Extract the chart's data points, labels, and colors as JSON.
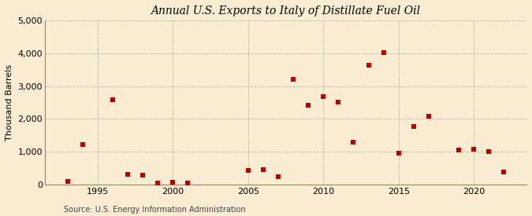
{
  "title": "Annual U.S. Exports to Italy of Distillate Fuel Oil",
  "ylabel": "Thousand Barrels",
  "source": "Source: U.S. Energy Information Administration",
  "background_color": "#faecd2",
  "marker_color": "#bb0000",
  "years": [
    1993,
    1994,
    1996,
    1997,
    1998,
    1999,
    2000,
    2001,
    2005,
    2006,
    2007,
    2008,
    2009,
    2010,
    2011,
    2012,
    2013,
    2014,
    2015,
    2016,
    2017,
    2019,
    2020,
    2021,
    2022
  ],
  "values": [
    80,
    1220,
    2580,
    310,
    280,
    50,
    60,
    50,
    420,
    450,
    230,
    3200,
    2420,
    2680,
    2520,
    1290,
    3640,
    4020,
    960,
    1760,
    2070,
    1040,
    1080,
    1010,
    380
  ],
  "xlim": [
    1991.5,
    2023.5
  ],
  "ylim": [
    0,
    5000
  ],
  "yticks": [
    0,
    1000,
    2000,
    3000,
    4000,
    5000
  ],
  "xticks": [
    1995,
    2000,
    2005,
    2010,
    2015,
    2020
  ],
  "grid_color": "#b0b0b0",
  "title_fontsize": 10,
  "label_fontsize": 8,
  "tick_fontsize": 8,
  "source_fontsize": 7
}
